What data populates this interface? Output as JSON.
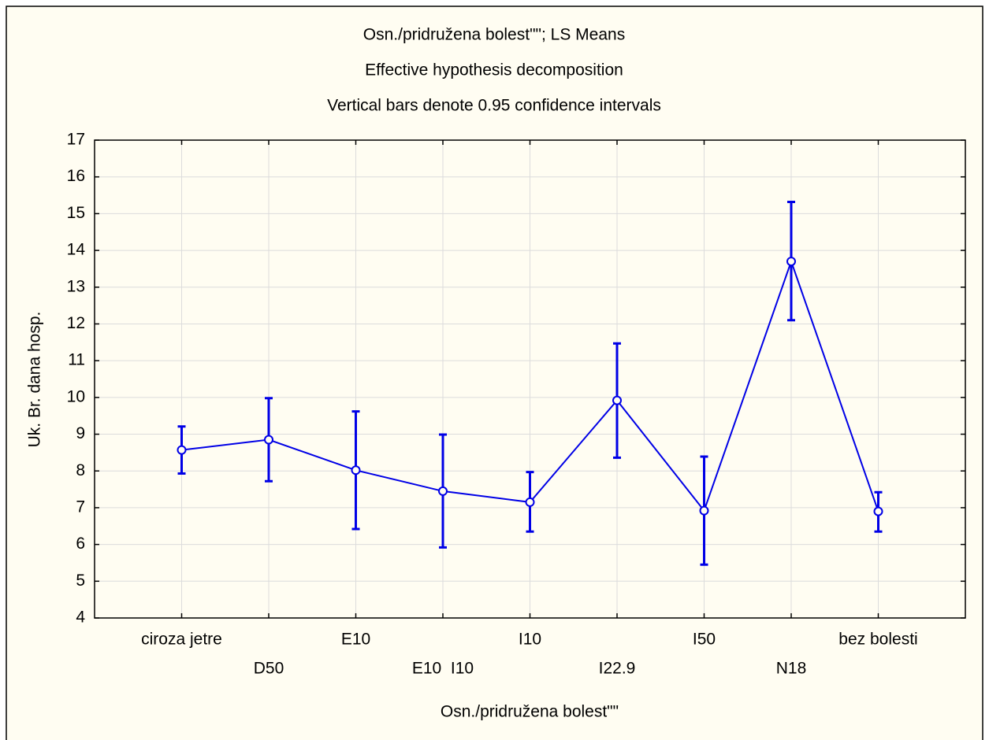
{
  "chart_data": {
    "type": "line",
    "title": "Osn./pridružena bolest\"\"; LS Means",
    "subtitle": "Effective hypothesis decomposition",
    "note": "Vertical bars denote 0.95 confidence intervals",
    "x_label": "Osn./pridružena bolest\"\"",
    "y_label": "Uk. Br. dana hosp.",
    "categories": [
      "ciroza jetre",
      "D50",
      "E10",
      "E10  I10",
      "I10",
      "I22.9",
      "I50",
      "N18",
      "bez bolesti"
    ],
    "series": [
      {
        "color": "#0000e6",
        "values": [
          8.57,
          8.85,
          8.02,
          7.45,
          7.15,
          9.92,
          6.92,
          13.7,
          6.9
        ],
        "ci_lower": [
          7.93,
          7.72,
          6.42,
          5.92,
          6.35,
          8.36,
          5.45,
          12.1,
          6.35
        ],
        "ci_upper": [
          9.21,
          9.98,
          9.62,
          8.99,
          7.97,
          11.47,
          8.39,
          15.32,
          7.42
        ]
      }
    ],
    "ylim": [
      4,
      17
    ],
    "yticks": [
      4,
      5,
      6,
      7,
      8,
      9,
      10,
      11,
      12,
      13,
      14,
      15,
      16,
      17
    ],
    "grid": true
  }
}
